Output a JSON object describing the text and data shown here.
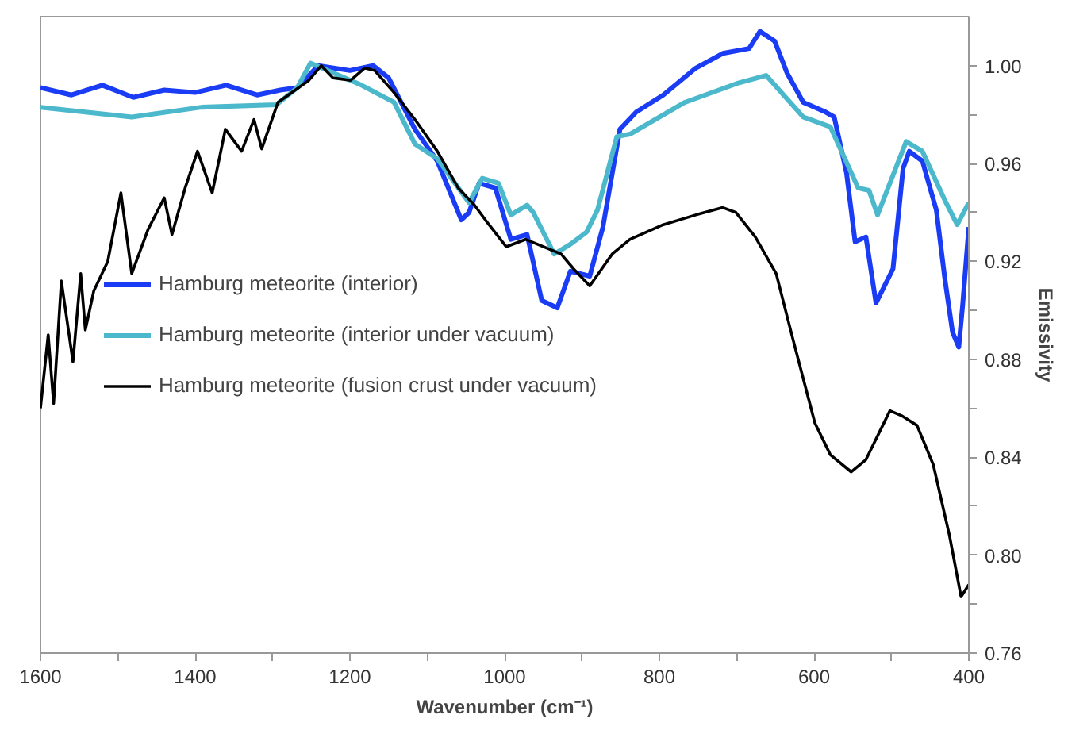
{
  "chart_data": {
    "type": "line",
    "xlabel": "Wavenumber (cm⁻¹)",
    "ylabel": "Emissivity",
    "xlim": [
      1600,
      400
    ],
    "ylim": [
      0.76,
      1.02
    ],
    "xticks": [
      1600,
      {
        "value": 1500,
        "label": null
      },
      1400,
      {
        "value": 1300,
        "label": null
      },
      1200,
      {
        "value": 1100,
        "label": null
      },
      1000,
      {
        "value": 900,
        "label": null
      },
      800,
      {
        "value": 700,
        "label": null
      },
      600,
      {
        "value": 500,
        "label": null
      },
      400
    ],
    "yticks": [
      {
        "value": 0.76,
        "label": "0.76"
      },
      {
        "value": 0.78,
        "label": null
      },
      {
        "value": 0.8,
        "label": "0.80"
      },
      {
        "value": 0.82,
        "label": null
      },
      {
        "value": 0.84,
        "label": "0.84"
      },
      {
        "value": 0.86,
        "label": null
      },
      {
        "value": 0.88,
        "label": "0.88"
      },
      {
        "value": 0.9,
        "label": null
      },
      {
        "value": 0.92,
        "label": "0.92"
      },
      {
        "value": 0.94,
        "label": null
      },
      {
        "value": 0.96,
        "label": "0.96"
      },
      {
        "value": 0.98,
        "label": null
      },
      {
        "value": 1.0,
        "label": "1.00"
      }
    ],
    "grid": false,
    "legend": "left",
    "marker": "none",
    "series": [
      {
        "name": "Hamburg meteorite (interior)",
        "color": "#1a3cf5",
        "x": [
          1600,
          1560,
          1520,
          1480,
          1440,
          1400,
          1360,
          1320,
          1290,
          1268,
          1241,
          1200,
          1170,
          1150,
          1116,
          1087,
          1056,
          1046,
          1033,
          1012,
          992,
          971,
          952,
          932,
          915,
          890,
          873,
          851,
          830,
          795,
          753,
          718,
          684,
          670,
          651,
          635,
          614,
          585,
          574,
          558,
          547,
          533,
          520,
          498,
          485,
          477,
          460,
          442,
          431,
          421,
          413,
          408,
          400
        ],
        "values": [
          0.991,
          0.988,
          0.992,
          0.987,
          0.99,
          0.989,
          0.992,
          0.988,
          0.99,
          0.991,
          1.0,
          0.998,
          1.0,
          0.995,
          0.974,
          0.961,
          0.937,
          0.94,
          0.952,
          0.95,
          0.929,
          0.931,
          0.904,
          0.901,
          0.916,
          0.914,
          0.934,
          0.974,
          0.981,
          0.988,
          0.999,
          1.005,
          1.007,
          1.014,
          1.01,
          0.997,
          0.985,
          0.981,
          0.979,
          0.956,
          0.928,
          0.93,
          0.903,
          0.917,
          0.958,
          0.965,
          0.961,
          0.941,
          0.913,
          0.891,
          0.885,
          0.902,
          0.934
        ]
      },
      {
        "name": "Hamburg meteorite (interior under vacuum)",
        "color": "#4bb8cc",
        "x": [
          1600,
          1482,
          1392,
          1295,
          1268,
          1251,
          1185,
          1143,
          1116,
          1087,
          1046,
          1029,
          1008,
          992,
          971,
          963,
          936,
          915,
          894,
          880,
          855,
          838,
          767,
          697,
          662,
          614,
          579,
          543,
          529,
          518,
          481,
          460,
          431,
          415,
          400
        ],
        "values": [
          0.983,
          0.979,
          0.983,
          0.984,
          0.991,
          1.001,
          0.992,
          0.985,
          0.968,
          0.962,
          0.944,
          0.954,
          0.952,
          0.939,
          0.943,
          0.94,
          0.923,
          0.927,
          0.932,
          0.941,
          0.971,
          0.972,
          0.985,
          0.993,
          0.996,
          0.979,
          0.975,
          0.95,
          0.949,
          0.939,
          0.969,
          0.965,
          0.945,
          0.935,
          0.944
        ]
      },
      {
        "name": "Hamburg meteorite (fusion crust under vacuum)",
        "color": "#000000",
        "x": [
          1600,
          1590,
          1583,
          1573,
          1558,
          1548,
          1542,
          1531,
          1513,
          1496,
          1482,
          1461,
          1440,
          1430,
          1413,
          1397,
          1378,
          1361,
          1340,
          1324,
          1314,
          1293,
          1253,
          1237,
          1222,
          1199,
          1181,
          1168,
          1143,
          1116,
          1087,
          1060,
          1039,
          1025,
          998,
          973,
          950,
          927,
          911,
          890,
          861,
          838,
          795,
          753,
          718,
          701,
          676,
          649,
          628,
          599,
          579,
          552,
          533,
          502,
          487,
          467,
          446,
          425,
          410,
          400
        ],
        "values": [
          0.86,
          0.89,
          0.862,
          0.912,
          0.879,
          0.915,
          0.892,
          0.908,
          0.92,
          0.948,
          0.915,
          0.933,
          0.946,
          0.931,
          0.95,
          0.965,
          0.948,
          0.974,
          0.965,
          0.978,
          0.966,
          0.985,
          0.994,
          1.0,
          0.995,
          0.994,
          0.999,
          0.998,
          0.989,
          0.978,
          0.965,
          0.95,
          0.943,
          0.937,
          0.926,
          0.929,
          0.926,
          0.923,
          0.917,
          0.91,
          0.923,
          0.929,
          0.935,
          0.939,
          0.942,
          0.94,
          0.93,
          0.915,
          0.889,
          0.854,
          0.841,
          0.834,
          0.839,
          0.859,
          0.857,
          0.853,
          0.837,
          0.808,
          0.783,
          0.788
        ]
      }
    ]
  }
}
